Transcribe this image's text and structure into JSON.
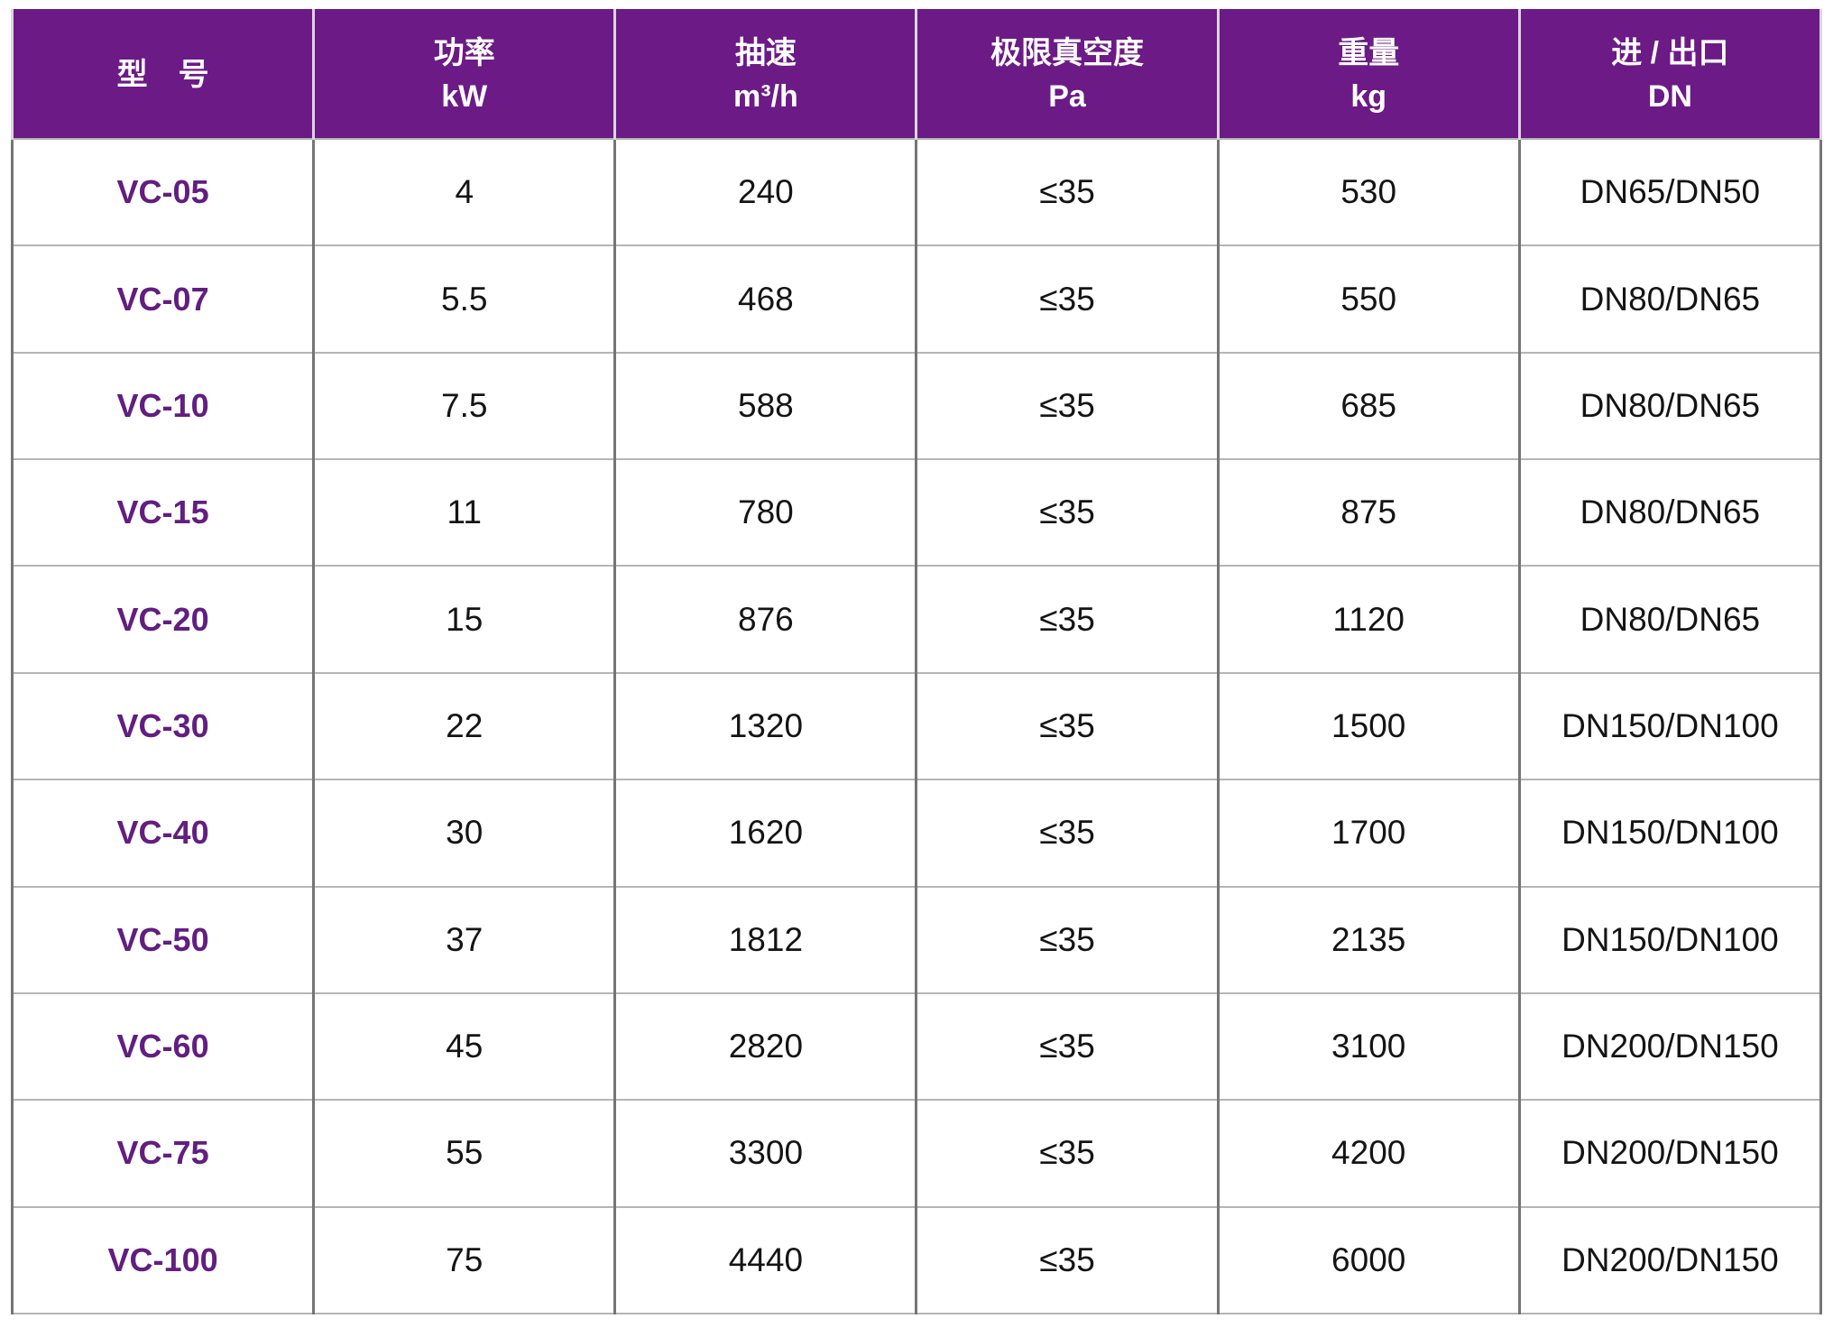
{
  "colors": {
    "header_bg": "#6C1A86",
    "header_text": "#FFFFFF",
    "model_text": "#621E80",
    "body_text": "#141414",
    "vertical_grid": "#757575",
    "horizontal_grid": "#B5B5B5",
    "header_divider": "#D9D6DE"
  },
  "table": {
    "headers": [
      {
        "label": "型　号",
        "unit": ""
      },
      {
        "label": "功率",
        "unit": "kW"
      },
      {
        "label": "抽速",
        "unit": "m³/h"
      },
      {
        "label": "极限真空度",
        "unit": "Pa"
      },
      {
        "label": "重量",
        "unit": "kg"
      },
      {
        "label": "进 / 出口",
        "unit": "DN"
      }
    ],
    "rows": [
      [
        "VC-05",
        "4",
        "240",
        "≤35",
        "530",
        "DN65/DN50"
      ],
      [
        "VC-07",
        "5.5",
        "468",
        "≤35",
        "550",
        "DN80/DN65"
      ],
      [
        "VC-10",
        "7.5",
        "588",
        "≤35",
        "685",
        "DN80/DN65"
      ],
      [
        "VC-15",
        "11",
        "780",
        "≤35",
        "875",
        "DN80/DN65"
      ],
      [
        "VC-20",
        "15",
        "876",
        "≤35",
        "1120",
        "DN80/DN65"
      ],
      [
        "VC-30",
        "22",
        "1320",
        "≤35",
        "1500",
        "DN150/DN100"
      ],
      [
        "VC-40",
        "30",
        "1620",
        "≤35",
        "1700",
        "DN150/DN100"
      ],
      [
        "VC-50",
        "37",
        "1812",
        "≤35",
        "2135",
        "DN150/DN100"
      ],
      [
        "VC-60",
        "45",
        "2820",
        "≤35",
        "3100",
        "DN200/DN150"
      ],
      [
        "VC-75",
        "55",
        "3300",
        "≤35",
        "4200",
        "DN200/DN150"
      ],
      [
        "VC-100",
        "75",
        "4440",
        "≤35",
        "6000",
        "DN200/DN150"
      ]
    ]
  }
}
